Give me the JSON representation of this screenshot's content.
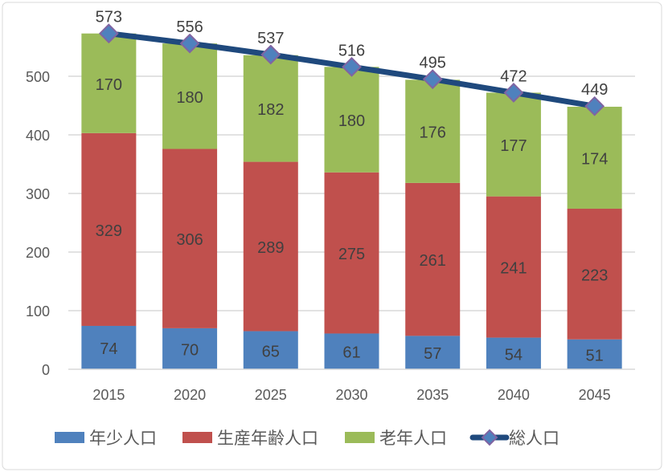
{
  "chart_data": {
    "type": "bar",
    "stacked": true,
    "categories": [
      "2015",
      "2020",
      "2025",
      "2030",
      "2035",
      "2040",
      "2045"
    ],
    "series": [
      {
        "name": "年少人口",
        "values": [
          74,
          70,
          65,
          61,
          57,
          54,
          51
        ],
        "color": "#4f81bd"
      },
      {
        "name": "生産年齢人口",
        "values": [
          329,
          306,
          289,
          275,
          261,
          241,
          223
        ],
        "color": "#c0504d"
      },
      {
        "name": "老年人口",
        "values": [
          170,
          180,
          182,
          180,
          176,
          177,
          174
        ],
        "color": "#9bbb59"
      }
    ],
    "line_series": {
      "name": "総人口",
      "type": "line",
      "values": [
        573,
        556,
        537,
        516,
        495,
        472,
        449
      ],
      "color": "#1f497d",
      "marker": "diamond",
      "marker_color": "#4f81bd",
      "marker_edge": "#8064a2"
    },
    "yticks": [
      0,
      100,
      200,
      300,
      400,
      500
    ],
    "ylim": [
      0,
      575
    ],
    "grid": true,
    "legend": "bottom",
    "title": "",
    "xlabel": "",
    "ylabel": ""
  }
}
